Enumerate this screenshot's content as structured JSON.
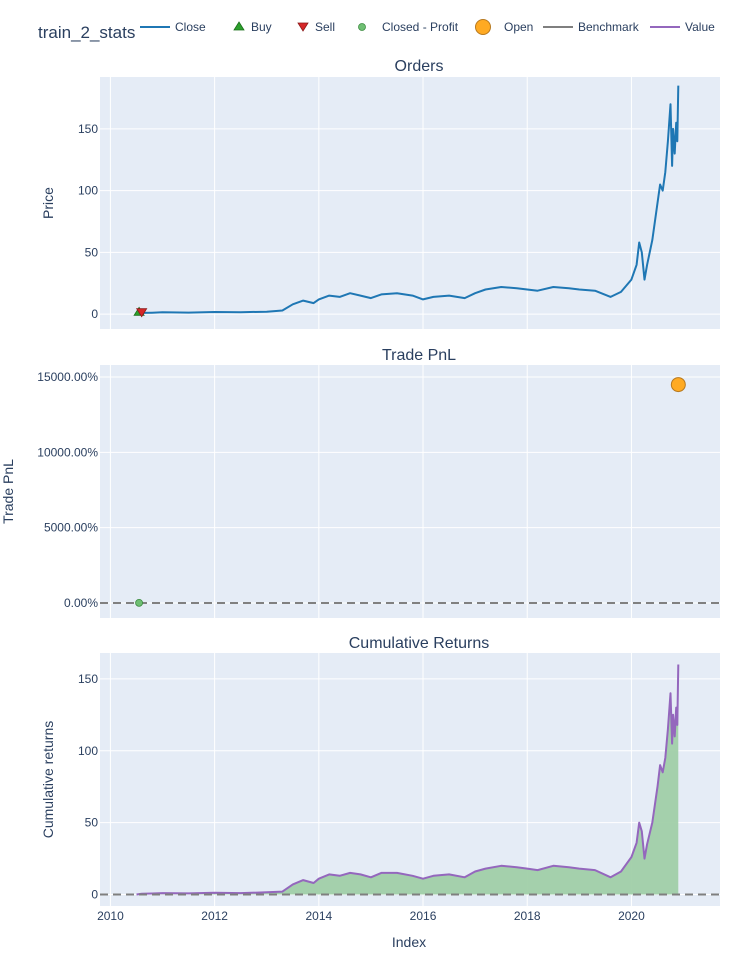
{
  "title": "train_2_stats",
  "legend": [
    {
      "label": "Close",
      "symbol": "line",
      "color": "#1f77b4"
    },
    {
      "label": "Buy",
      "symbol": "triangle-up",
      "color": "#2ca02c"
    },
    {
      "label": "Sell",
      "symbol": "triangle-down",
      "color": "#d62728"
    },
    {
      "label": "Closed - Profit",
      "symbol": "circle",
      "color": "#6fbf73"
    },
    {
      "label": "Open",
      "symbol": "circle-big",
      "color": "#ffaa22"
    },
    {
      "label": "Benchmark",
      "symbol": "line",
      "color": "#7f7f7f"
    },
    {
      "label": "Value",
      "symbol": "line",
      "color": "#9467bd"
    }
  ],
  "x_axis": {
    "title": "Index",
    "range": [
      2009.8,
      2021.7
    ],
    "ticks": [
      2010,
      2012,
      2014,
      2016,
      2018,
      2020
    ],
    "tick_labels": [
      "2010",
      "2012",
      "2014",
      "2016",
      "2018",
      "2020"
    ]
  },
  "chart_data": [
    {
      "type": "line",
      "title": "Orders",
      "ylabel": "Price",
      "ylim": [
        -12,
        192
      ],
      "yticks": [
        0,
        50,
        100,
        150
      ],
      "ytick_labels": [
        "0",
        "50",
        "100",
        "150"
      ],
      "series": [
        {
          "name": "Close",
          "color": "#1f77b4",
          "x": [
            2010.5,
            2010.6,
            2010.8,
            2011.0,
            2011.5,
            2012.0,
            2012.5,
            2013.0,
            2013.3,
            2013.5,
            2013.7,
            2013.9,
            2014.0,
            2014.2,
            2014.4,
            2014.6,
            2014.8,
            2015.0,
            2015.2,
            2015.5,
            2015.8,
            2016.0,
            2016.2,
            2016.5,
            2016.8,
            2017.0,
            2017.2,
            2017.5,
            2017.8,
            2018.0,
            2018.2,
            2018.5,
            2018.8,
            2019.0,
            2019.3,
            2019.6,
            2019.8,
            2020.0,
            2020.1,
            2020.15,
            2020.2,
            2020.25,
            2020.3,
            2020.4,
            2020.5,
            2020.55,
            2020.6,
            2020.65,
            2020.7,
            2020.75,
            2020.78,
            2020.8,
            2020.83,
            2020.86,
            2020.88,
            2020.9
          ],
          "y": [
            1.5,
            1.0,
            1.2,
            1.5,
            1.3,
            1.8,
            1.6,
            2.0,
            3.0,
            8.0,
            11.0,
            9.0,
            12.0,
            15.0,
            14.0,
            17.0,
            15.0,
            13.0,
            16.0,
            17.0,
            15.0,
            12.0,
            14.0,
            15.0,
            13.0,
            17.0,
            20.0,
            22.0,
            21.0,
            20.0,
            19.0,
            22.0,
            21.0,
            20.0,
            19.0,
            14.0,
            18.0,
            28.0,
            40.0,
            58.0,
            50.0,
            28.0,
            40.0,
            60.0,
            90.0,
            105.0,
            100.0,
            115.0,
            140.0,
            170.0,
            120.0,
            150.0,
            130.0,
            155.0,
            140.0,
            185.0
          ]
        },
        {
          "name": "Buy",
          "marker": "triangle-up",
          "color": "#2ca02c",
          "x": [
            2010.55
          ],
          "y": [
            1.5
          ]
        },
        {
          "name": "Sell",
          "marker": "triangle-down",
          "color": "#d62728",
          "x": [
            2010.6
          ],
          "y": [
            1.2
          ]
        }
      ]
    },
    {
      "type": "scatter",
      "title": "Trade PnL",
      "ylabel": "Trade PnL",
      "ylim": [
        -1000,
        15800
      ],
      "yticks": [
        0,
        5000,
        10000,
        15000
      ],
      "ytick_labels": [
        "0.00%",
        "5000.00%",
        "10000.00%",
        "15000.00%"
      ],
      "zero_line": 0,
      "series": [
        {
          "name": "Closed - Profit",
          "marker": "circle",
          "color": "#6fbf73",
          "x": [
            2010.55
          ],
          "y": [
            5
          ]
        },
        {
          "name": "Open",
          "marker": "circle-big",
          "color": "#ffaa22",
          "x": [
            2020.9
          ],
          "y": [
            14500
          ]
        }
      ]
    },
    {
      "type": "area",
      "title": "Cumulative Returns",
      "ylabel": "Cumulative returns",
      "ylim": [
        -8,
        168
      ],
      "yticks": [
        0,
        50,
        100,
        150
      ],
      "ytick_labels": [
        "0",
        "50",
        "100",
        "150"
      ],
      "zero_line": 0,
      "series": [
        {
          "name": "Value",
          "color": "#9467bd",
          "fill": "#a0cfa8",
          "x": [
            2010.5,
            2010.6,
            2010.8,
            2011.0,
            2011.5,
            2012.0,
            2012.5,
            2013.0,
            2013.3,
            2013.5,
            2013.7,
            2013.9,
            2014.0,
            2014.2,
            2014.4,
            2014.6,
            2014.8,
            2015.0,
            2015.2,
            2015.5,
            2015.8,
            2016.0,
            2016.2,
            2016.5,
            2016.8,
            2017.0,
            2017.2,
            2017.5,
            2017.8,
            2018.0,
            2018.2,
            2018.5,
            2018.8,
            2019.0,
            2019.3,
            2019.6,
            2019.8,
            2020.0,
            2020.1,
            2020.15,
            2020.2,
            2020.25,
            2020.3,
            2020.4,
            2020.5,
            2020.55,
            2020.6,
            2020.65,
            2020.7,
            2020.75,
            2020.78,
            2020.8,
            2020.83,
            2020.86,
            2020.88,
            2020.9
          ],
          "y": [
            0.0,
            0.5,
            0.7,
            1.0,
            0.8,
            1.2,
            1.0,
            1.5,
            2.0,
            7.0,
            10.0,
            8.0,
            11.0,
            14.0,
            13.0,
            15.0,
            14.0,
            12.0,
            15.0,
            15.0,
            13.0,
            11.0,
            13.0,
            14.0,
            12.0,
            16.0,
            18.0,
            20.0,
            19.0,
            18.0,
            17.0,
            20.0,
            19.0,
            18.0,
            17.0,
            12.0,
            16.0,
            26.0,
            36.0,
            50.0,
            44.0,
            25.0,
            35.0,
            50.0,
            75.0,
            90.0,
            85.0,
            95.0,
            115.0,
            140.0,
            105.0,
            125.0,
            110.0,
            130.0,
            118.0,
            160.0
          ]
        },
        {
          "name": "Benchmark",
          "color": "#7f7f7f",
          "x": [
            2009.8,
            2021.7
          ],
          "y": [
            0,
            0
          ]
        }
      ]
    }
  ]
}
